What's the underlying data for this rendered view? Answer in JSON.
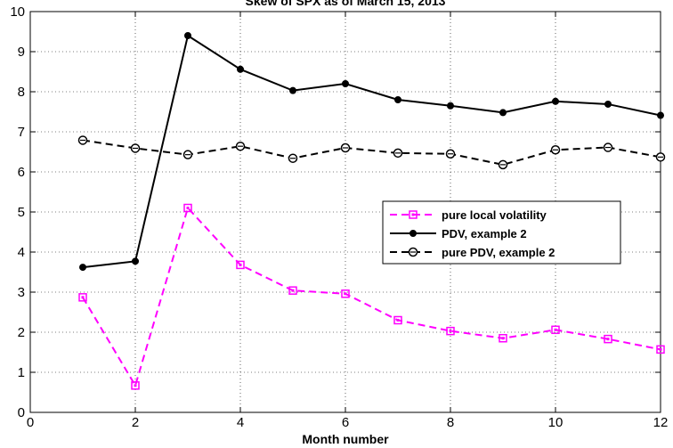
{
  "chart_data": {
    "type": "line",
    "title": "Skew of SPX as of March 15, 2013",
    "xlabel": "Month number",
    "ylabel": "",
    "xlim": [
      0,
      12
    ],
    "ylim": [
      0,
      10
    ],
    "xticks": [
      0,
      2,
      4,
      6,
      8,
      10,
      12
    ],
    "yticks": [
      0,
      1,
      2,
      3,
      4,
      5,
      6,
      7,
      8,
      9,
      10
    ],
    "grid": true,
    "legend_position": "center-right",
    "x": [
      1,
      2,
      3,
      4,
      5,
      6,
      7,
      8,
      9,
      10,
      11,
      12
    ],
    "series": [
      {
        "name": "pure local volatility",
        "color": "#ff00ff",
        "line_style": "dashed",
        "marker": "square",
        "values": [
          2.87,
          0.67,
          5.1,
          3.68,
          3.04,
          2.96,
          2.3,
          2.03,
          1.85,
          2.06,
          1.83,
          1.57
        ]
      },
      {
        "name": "PDV, example 2",
        "color": "#000000",
        "line_style": "solid",
        "marker": "filled-circle",
        "values": [
          3.62,
          3.77,
          9.4,
          8.56,
          8.03,
          8.2,
          7.8,
          7.65,
          7.48,
          7.76,
          7.69,
          7.41
        ]
      },
      {
        "name": "pure PDV, example 2",
        "color": "#000000",
        "line_style": "dashed",
        "marker": "open-circle",
        "values": [
          6.79,
          6.59,
          6.43,
          6.64,
          6.34,
          6.6,
          6.47,
          6.45,
          6.18,
          6.55,
          6.61,
          6.37
        ]
      }
    ]
  }
}
